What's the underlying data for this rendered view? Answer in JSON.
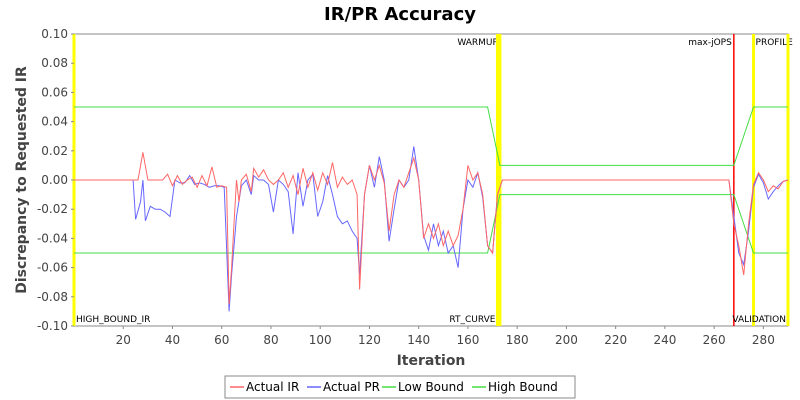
{
  "chart_data": {
    "type": "line",
    "title": "IR/PR Accuracy",
    "xlabel": "Iteration",
    "ylabel": "Discrepancy to Requested IR",
    "xlim": [
      0,
      290
    ],
    "ylim": [
      -0.1,
      0.1
    ],
    "x_ticks": [
      20,
      40,
      60,
      80,
      100,
      120,
      140,
      160,
      180,
      200,
      220,
      240,
      260,
      280
    ],
    "y_ticks": [
      0.1,
      0.08,
      0.06,
      0.04,
      0.02,
      0.0,
      -0.02,
      -0.04,
      -0.06,
      -0.08,
      -0.1
    ],
    "grid": false,
    "legend_position": "bottom",
    "phase_markers": [
      {
        "label": "WARMUP",
        "x": 173,
        "color": "#ffff00",
        "label_pos": "top"
      },
      {
        "label": "max-jOPS",
        "x": 268,
        "color": "#ff0000",
        "label_pos": "top"
      },
      {
        "label": "PROFILE",
        "x": 276,
        "color": "#ffff00",
        "label_pos": "top"
      },
      {
        "label": "HIGH_BOUND_IR",
        "x": 0,
        "color": "#ffff00",
        "label_pos": "bottom"
      },
      {
        "label": "RT_CURVE",
        "x": 172,
        "color": "#ffff00",
        "label_pos": "bottom"
      },
      {
        "label": "VALIDATION",
        "x": 290,
        "color": "#ffff00",
        "label_pos": "bottom"
      }
    ],
    "series": [
      {
        "name": "Actual IR",
        "color": "#ff6666",
        "points": [
          [
            0,
            0
          ],
          [
            26,
            0
          ],
          [
            28,
            0.019
          ],
          [
            30,
            0
          ],
          [
            36,
            0
          ],
          [
            38,
            0.004
          ],
          [
            40,
            -0.004
          ],
          [
            42,
            0.003
          ],
          [
            44,
            -0.003
          ],
          [
            46,
            0
          ],
          [
            48,
            0.002
          ],
          [
            50,
            -0.005
          ],
          [
            52,
            0.003
          ],
          [
            54,
            -0.004
          ],
          [
            56,
            0.009
          ],
          [
            58,
            -0.005
          ],
          [
            60,
            -0.004
          ],
          [
            62,
            -0.005
          ],
          [
            63,
            -0.085
          ],
          [
            64,
            -0.06
          ],
          [
            65,
            -0.03
          ],
          [
            66,
            0
          ],
          [
            67,
            -0.015
          ],
          [
            68,
            0
          ],
          [
            70,
            0.004
          ],
          [
            72,
            -0.008
          ],
          [
            73,
            0.008
          ],
          [
            75,
            0.002
          ],
          [
            77,
            0.007
          ],
          [
            79,
            0
          ],
          [
            81,
            -0.003
          ],
          [
            83,
            0
          ],
          [
            85,
            0.005
          ],
          [
            87,
            -0.005
          ],
          [
            89,
            0.003
          ],
          [
            91,
            -0.01
          ],
          [
            93,
            0.008
          ],
          [
            95,
            -0.005
          ],
          [
            97,
            0.005
          ],
          [
            99,
            -0.007
          ],
          [
            101,
            0.005
          ],
          [
            103,
            -0.003
          ],
          [
            105,
            0.012
          ],
          [
            107,
            -0.005
          ],
          [
            109,
            0.002
          ],
          [
            111,
            -0.003
          ],
          [
            113,
            0
          ],
          [
            115,
            -0.01
          ],
          [
            116,
            -0.075
          ],
          [
            118,
            -0.01
          ],
          [
            120,
            0.01
          ],
          [
            122,
            0
          ],
          [
            124,
            0.01
          ],
          [
            126,
            -0.002
          ],
          [
            128,
            -0.035
          ],
          [
            130,
            -0.01
          ],
          [
            132,
            0
          ],
          [
            134,
            -0.005
          ],
          [
            136,
            0.005
          ],
          [
            138,
            0.015
          ],
          [
            140,
            0
          ],
          [
            142,
            -0.04
          ],
          [
            144,
            -0.03
          ],
          [
            146,
            -0.04
          ],
          [
            148,
            -0.03
          ],
          [
            150,
            -0.045
          ],
          [
            152,
            -0.035
          ],
          [
            154,
            -0.045
          ],
          [
            156,
            -0.038
          ],
          [
            158,
            -0.02
          ],
          [
            160,
            0.01
          ],
          [
            162,
            0
          ],
          [
            164,
            0.005
          ],
          [
            166,
            -0.01
          ],
          [
            168,
            -0.045
          ],
          [
            170,
            -0.05
          ],
          [
            172,
            -0.01
          ],
          [
            174,
            0
          ],
          [
            180,
            0
          ],
          [
            190,
            0
          ],
          [
            200,
            0
          ],
          [
            210,
            0
          ],
          [
            220,
            0
          ],
          [
            230,
            0
          ],
          [
            240,
            0
          ],
          [
            250,
            0
          ],
          [
            260,
            0
          ],
          [
            266,
            0
          ],
          [
            268,
            -0.03
          ],
          [
            270,
            -0.045
          ],
          [
            272,
            -0.065
          ],
          [
            274,
            -0.03
          ],
          [
            276,
            -0.003
          ],
          [
            278,
            0.005
          ],
          [
            280,
            0
          ],
          [
            282,
            -0.008
          ],
          [
            284,
            -0.004
          ],
          [
            286,
            -0.006
          ],
          [
            288,
            -0.001
          ],
          [
            290,
            0
          ]
        ]
      },
      {
        "name": "Actual PR",
        "color": "#6666ff",
        "points": [
          [
            0,
            0
          ],
          [
            24,
            0
          ],
          [
            25,
            -0.027
          ],
          [
            27,
            -0.015
          ],
          [
            28,
            0
          ],
          [
            29,
            -0.028
          ],
          [
            31,
            -0.018
          ],
          [
            33,
            -0.02
          ],
          [
            35,
            -0.02
          ],
          [
            37,
            -0.022
          ],
          [
            39,
            -0.025
          ],
          [
            41,
            0
          ],
          [
            43,
            -0.002
          ],
          [
            45,
            -0.002
          ],
          [
            47,
            0.003
          ],
          [
            49,
            -0.003
          ],
          [
            51,
            -0.002
          ],
          [
            53,
            -0.003
          ],
          [
            55,
            -0.005
          ],
          [
            57,
            -0.004
          ],
          [
            59,
            -0.004
          ],
          [
            61,
            -0.005
          ],
          [
            63,
            -0.09
          ],
          [
            64,
            -0.065
          ],
          [
            66,
            -0.025
          ],
          [
            68,
            -0.004
          ],
          [
            70,
            0
          ],
          [
            72,
            -0.01
          ],
          [
            73,
            0.003
          ],
          [
            75,
            0
          ],
          [
            77,
            0
          ],
          [
            79,
            -0.003
          ],
          [
            81,
            -0.022
          ],
          [
            83,
            0
          ],
          [
            85,
            -0.003
          ],
          [
            87,
            -0.008
          ],
          [
            89,
            -0.037
          ],
          [
            91,
            0.005
          ],
          [
            93,
            -0.018
          ],
          [
            95,
            0
          ],
          [
            97,
            0.004
          ],
          [
            99,
            -0.025
          ],
          [
            101,
            -0.015
          ],
          [
            103,
            0.003
          ],
          [
            105,
            -0.01
          ],
          [
            107,
            -0.025
          ],
          [
            109,
            -0.03
          ],
          [
            111,
            -0.028
          ],
          [
            113,
            -0.035
          ],
          [
            115,
            -0.04
          ],
          [
            116,
            -0.065
          ],
          [
            118,
            -0.01
          ],
          [
            120,
            0.01
          ],
          [
            122,
            -0.005
          ],
          [
            124,
            0.016
          ],
          [
            126,
            0
          ],
          [
            128,
            -0.042
          ],
          [
            130,
            -0.02
          ],
          [
            132,
            0
          ],
          [
            134,
            -0.005
          ],
          [
            136,
            0
          ],
          [
            138,
            0.023
          ],
          [
            140,
            0
          ],
          [
            142,
            -0.038
          ],
          [
            144,
            -0.048
          ],
          [
            146,
            -0.03
          ],
          [
            148,
            -0.045
          ],
          [
            150,
            -0.035
          ],
          [
            152,
            -0.05
          ],
          [
            154,
            -0.045
          ],
          [
            156,
            -0.06
          ],
          [
            158,
            -0.02
          ],
          [
            160,
            0
          ],
          [
            162,
            -0.005
          ],
          [
            164,
            0.005
          ],
          [
            166,
            -0.012
          ],
          [
            168,
            -0.045
          ],
          [
            170,
            -0.05
          ],
          [
            172,
            -0.01
          ],
          [
            174,
            0
          ],
          [
            180,
            0
          ],
          [
            190,
            0
          ],
          [
            200,
            0
          ],
          [
            210,
            0
          ],
          [
            220,
            0
          ],
          [
            230,
            0
          ],
          [
            240,
            0
          ],
          [
            250,
            0
          ],
          [
            260,
            0
          ],
          [
            266,
            0
          ],
          [
            268,
            -0.025
          ],
          [
            270,
            -0.05
          ],
          [
            272,
            -0.058
          ],
          [
            274,
            -0.035
          ],
          [
            276,
            -0.005
          ],
          [
            278,
            0.004
          ],
          [
            280,
            -0.002
          ],
          [
            282,
            -0.013
          ],
          [
            284,
            -0.008
          ],
          [
            286,
            -0.004
          ],
          [
            288,
            -0.001
          ],
          [
            290,
            0
          ]
        ]
      },
      {
        "name": "Low Bound",
        "color": "#44dd44",
        "points": [
          [
            0,
            -0.05
          ],
          [
            168,
            -0.05
          ],
          [
            173,
            -0.01
          ],
          [
            268,
            -0.01
          ],
          [
            276,
            -0.05
          ],
          [
            290,
            -0.05
          ]
        ]
      },
      {
        "name": "High Bound",
        "color": "#44dd44",
        "points": [
          [
            0,
            0.05
          ],
          [
            168,
            0.05
          ],
          [
            173,
            0.01
          ],
          [
            268,
            0.01
          ],
          [
            276,
            0.05
          ],
          [
            290,
            0.05
          ]
        ]
      }
    ]
  }
}
